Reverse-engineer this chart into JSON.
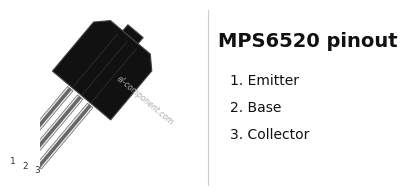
{
  "background_color": "#ffffff",
  "title": "MPS6520 pinout",
  "title_fontsize": 14,
  "title_fontweight": "bold",
  "watermark": "el-component.com",
  "pins": [
    {
      "number": "1.",
      "label": "Emitter"
    },
    {
      "number": "2.",
      "label": "Base"
    },
    {
      "number": "3.",
      "label": "Collector"
    }
  ],
  "body_color": "#111111",
  "body_edge_color": "#444444",
  "lead_light": "#e8e8e8",
  "lead_dark": "#666666",
  "lead_mid": "#b0b0b0",
  "divider_color": "#cccccc",
  "text_color": "#111111",
  "watermark_color": "#aaaaaa",
  "pin_number_color": "#333333"
}
